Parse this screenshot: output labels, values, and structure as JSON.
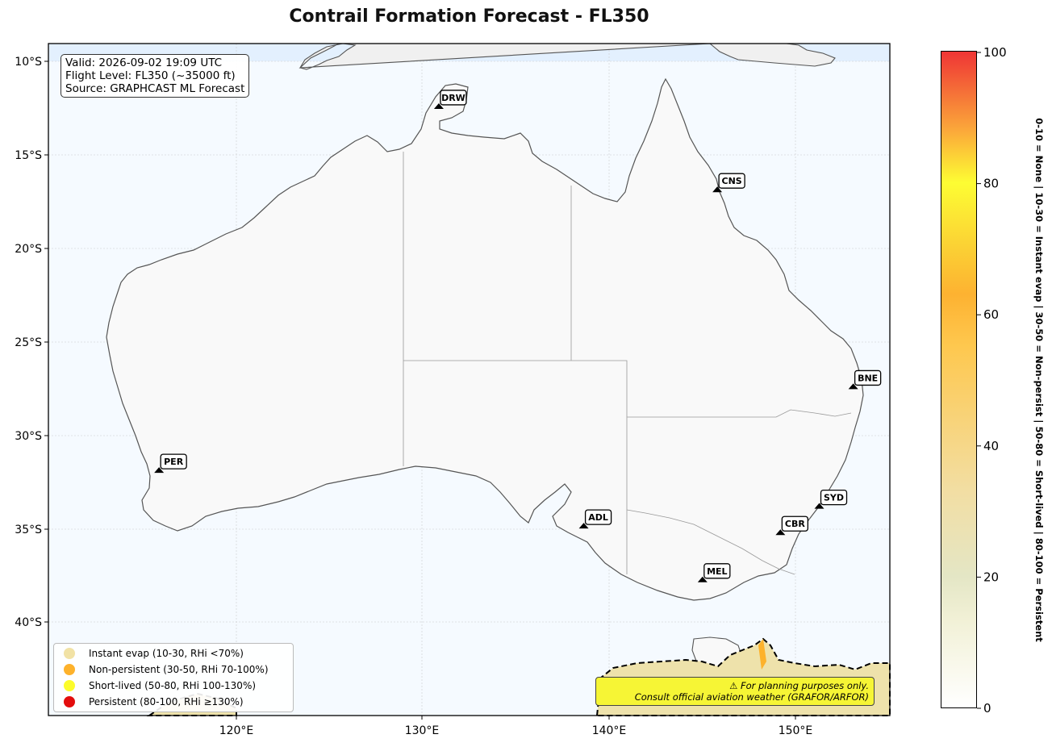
{
  "title": "Contrail Formation Forecast - FL350",
  "info": {
    "valid": "Valid: 2026-09-02 19:09 UTC",
    "flight_level": "Flight Level: FL350 (~35000 ft)",
    "source": "Source: GRAPHCAST ML Forecast"
  },
  "axes": {
    "lat_ticks": [
      "10°S",
      "15°S",
      "20°S",
      "25°S",
      "30°S",
      "35°S",
      "40°S"
    ],
    "lon_ticks": [
      "120°E",
      "130°E",
      "140°E",
      "150°E"
    ]
  },
  "airports": [
    {
      "code": "DRW",
      "lon": 130.84,
      "lat": -12.46
    },
    {
      "code": "CNS",
      "lon": 145.75,
      "lat": -16.92
    },
    {
      "code": "BNE",
      "lon": 153.03,
      "lat": -27.47
    },
    {
      "code": "PER",
      "lon": 115.86,
      "lat": -31.95
    },
    {
      "code": "SYD",
      "lon": 151.21,
      "lat": -33.87
    },
    {
      "code": "ADL",
      "lon": 138.6,
      "lat": -34.93
    },
    {
      "code": "CBR",
      "lon": 149.13,
      "lat": -35.28
    },
    {
      "code": "MEL",
      "lon": 144.96,
      "lat": -37.81
    }
  ],
  "legend": [
    {
      "label": "Instant evap (10-30, RHi <70%)",
      "color": "#f1e2a5"
    },
    {
      "label": "Non-persistent (30-50, RHi 70-100%)",
      "color": "#fdb22b"
    },
    {
      "label": "Short-lived (50-80, RHi 100-130%)",
      "color": "#fcfc2b"
    },
    {
      "label": "Persistent (80-100, RHi ≥130%)",
      "color": "#e30d0d"
    }
  ],
  "warning": {
    "line1": "⚠ For planning purposes only.",
    "line2": "Consult official aviation weather (GRAFOR/ARFOR)"
  },
  "colorbar": {
    "ticks": [
      "0",
      "20",
      "40",
      "60",
      "80",
      "100"
    ],
    "label": "0-10 = None | 10-30 = Instant evap | 30-50 = Non-persist | 50-80 = Short-lived | 80-100 = Persistent"
  },
  "colors": {
    "ocean": "#f5faff",
    "land": "#f9f9f9",
    "coast": "#555555"
  }
}
